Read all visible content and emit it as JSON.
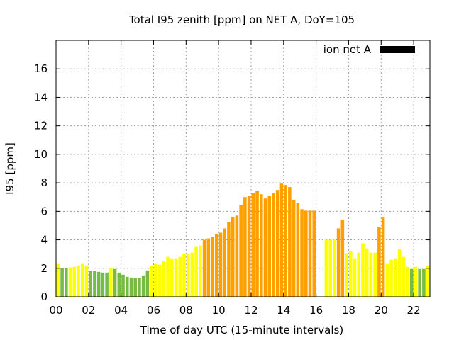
{
  "chart_data": {
    "type": "bar",
    "title": "Total I95 zenith [ppm] on NET A, DoY=105",
    "xlabel": "Time of day UTC (15-minute intervals)",
    "ylabel": "I95 [ppm]",
    "xlim": [
      0,
      23
    ],
    "ylim": [
      0,
      18
    ],
    "xticks": [
      "00",
      "02",
      "04",
      "06",
      "08",
      "10",
      "12",
      "14",
      "16",
      "18",
      "20",
      "22"
    ],
    "yticks": [
      "0",
      "2",
      "4",
      "6",
      "8",
      "10",
      "12",
      "14",
      "16"
    ],
    "grid": true,
    "legend": {
      "label": "ion net A",
      "position": "top-right"
    },
    "colors": {
      "green": "#77bb44",
      "yellow": "#ffff00",
      "orange": "#ffa000",
      "legend": "#000000"
    },
    "bar_width": 0.2,
    "bars": [
      {
        "t": 0.125,
        "v": 2.3,
        "c": "yellow"
      },
      {
        "t": 0.375,
        "v": 2.0,
        "c": "green"
      },
      {
        "t": 0.625,
        "v": 2.0,
        "c": "green"
      },
      {
        "t": 0.875,
        "v": 2.05,
        "c": "yellow"
      },
      {
        "t": 1.125,
        "v": 2.1,
        "c": "yellow"
      },
      {
        "t": 1.375,
        "v": 2.2,
        "c": "yellow"
      },
      {
        "t": 1.625,
        "v": 2.3,
        "c": "yellow"
      },
      {
        "t": 1.875,
        "v": 2.2,
        "c": "yellow"
      },
      {
        "t": 2.125,
        "v": 1.8,
        "c": "green"
      },
      {
        "t": 2.375,
        "v": 1.8,
        "c": "green"
      },
      {
        "t": 2.625,
        "v": 1.75,
        "c": "green"
      },
      {
        "t": 2.875,
        "v": 1.7,
        "c": "green"
      },
      {
        "t": 3.125,
        "v": 1.7,
        "c": "green"
      },
      {
        "t": 3.375,
        "v": 2.0,
        "c": "yellow"
      },
      {
        "t": 3.625,
        "v": 1.95,
        "c": "green"
      },
      {
        "t": 3.875,
        "v": 1.7,
        "c": "green"
      },
      {
        "t": 4.125,
        "v": 1.55,
        "c": "green"
      },
      {
        "t": 4.375,
        "v": 1.4,
        "c": "green"
      },
      {
        "t": 4.625,
        "v": 1.35,
        "c": "green"
      },
      {
        "t": 4.875,
        "v": 1.3,
        "c": "green"
      },
      {
        "t": 5.125,
        "v": 1.3,
        "c": "green"
      },
      {
        "t": 5.375,
        "v": 1.5,
        "c": "green"
      },
      {
        "t": 5.625,
        "v": 1.85,
        "c": "green"
      },
      {
        "t": 5.875,
        "v": 2.2,
        "c": "yellow"
      },
      {
        "t": 6.125,
        "v": 2.3,
        "c": "yellow"
      },
      {
        "t": 6.375,
        "v": 2.25,
        "c": "yellow"
      },
      {
        "t": 6.625,
        "v": 2.5,
        "c": "yellow"
      },
      {
        "t": 6.875,
        "v": 2.8,
        "c": "yellow"
      },
      {
        "t": 7.125,
        "v": 2.7,
        "c": "yellow"
      },
      {
        "t": 7.375,
        "v": 2.7,
        "c": "yellow"
      },
      {
        "t": 7.625,
        "v": 2.8,
        "c": "yellow"
      },
      {
        "t": 7.875,
        "v": 3.0,
        "c": "yellow"
      },
      {
        "t": 8.125,
        "v": 3.0,
        "c": "yellow"
      },
      {
        "t": 8.375,
        "v": 3.1,
        "c": "yellow"
      },
      {
        "t": 8.625,
        "v": 3.5,
        "c": "yellow"
      },
      {
        "t": 8.875,
        "v": 3.6,
        "c": "yellow"
      },
      {
        "t": 9.125,
        "v": 4.0,
        "c": "orange"
      },
      {
        "t": 9.375,
        "v": 4.1,
        "c": "orange"
      },
      {
        "t": 9.625,
        "v": 4.2,
        "c": "orange"
      },
      {
        "t": 9.875,
        "v": 4.4,
        "c": "orange"
      },
      {
        "t": 10.125,
        "v": 4.5,
        "c": "orange"
      },
      {
        "t": 10.375,
        "v": 4.8,
        "c": "orange"
      },
      {
        "t": 10.625,
        "v": 5.25,
        "c": "orange"
      },
      {
        "t": 10.875,
        "v": 5.6,
        "c": "orange"
      },
      {
        "t": 11.125,
        "v": 5.7,
        "c": "orange"
      },
      {
        "t": 11.375,
        "v": 6.45,
        "c": "orange"
      },
      {
        "t": 11.625,
        "v": 7.0,
        "c": "orange"
      },
      {
        "t": 11.875,
        "v": 7.1,
        "c": "orange"
      },
      {
        "t": 12.125,
        "v": 7.3,
        "c": "orange"
      },
      {
        "t": 12.375,
        "v": 7.45,
        "c": "orange"
      },
      {
        "t": 12.625,
        "v": 7.2,
        "c": "orange"
      },
      {
        "t": 12.875,
        "v": 6.9,
        "c": "orange"
      },
      {
        "t": 13.125,
        "v": 7.1,
        "c": "orange"
      },
      {
        "t": 13.375,
        "v": 7.3,
        "c": "orange"
      },
      {
        "t": 13.625,
        "v": 7.5,
        "c": "orange"
      },
      {
        "t": 13.875,
        "v": 7.95,
        "c": "orange"
      },
      {
        "t": 14.125,
        "v": 7.85,
        "c": "orange"
      },
      {
        "t": 14.375,
        "v": 7.7,
        "c": "orange"
      },
      {
        "t": 14.625,
        "v": 6.8,
        "c": "orange"
      },
      {
        "t": 14.875,
        "v": 6.6,
        "c": "orange"
      },
      {
        "t": 15.125,
        "v": 6.15,
        "c": "orange"
      },
      {
        "t": 15.375,
        "v": 6.05,
        "c": "orange"
      },
      {
        "t": 15.625,
        "v": 6.05,
        "c": "orange"
      },
      {
        "t": 15.875,
        "v": 6.05,
        "c": "orange"
      },
      {
        "t": 16.625,
        "v": 4.0,
        "c": "yellow"
      },
      {
        "t": 16.875,
        "v": 4.0,
        "c": "yellow"
      },
      {
        "t": 17.125,
        "v": 4.0,
        "c": "yellow"
      },
      {
        "t": 17.375,
        "v": 4.8,
        "c": "orange"
      },
      {
        "t": 17.625,
        "v": 5.4,
        "c": "orange"
      },
      {
        "t": 17.875,
        "v": 3.05,
        "c": "yellow"
      },
      {
        "t": 18.125,
        "v": 3.2,
        "c": "yellow"
      },
      {
        "t": 18.375,
        "v": 2.7,
        "c": "yellow"
      },
      {
        "t": 18.625,
        "v": 3.1,
        "c": "yellow"
      },
      {
        "t": 18.875,
        "v": 3.75,
        "c": "yellow"
      },
      {
        "t": 19.125,
        "v": 3.4,
        "c": "yellow"
      },
      {
        "t": 19.375,
        "v": 3.1,
        "c": "yellow"
      },
      {
        "t": 19.625,
        "v": 3.1,
        "c": "yellow"
      },
      {
        "t": 19.875,
        "v": 4.9,
        "c": "orange"
      },
      {
        "t": 20.125,
        "v": 5.6,
        "c": "orange"
      },
      {
        "t": 20.375,
        "v": 2.3,
        "c": "yellow"
      },
      {
        "t": 20.625,
        "v": 2.6,
        "c": "yellow"
      },
      {
        "t": 20.875,
        "v": 2.7,
        "c": "yellow"
      },
      {
        "t": 21.125,
        "v": 3.35,
        "c": "yellow"
      },
      {
        "t": 21.375,
        "v": 2.8,
        "c": "yellow"
      },
      {
        "t": 21.625,
        "v": 2.1,
        "c": "yellow"
      },
      {
        "t": 21.875,
        "v": 1.95,
        "c": "green"
      },
      {
        "t": 22.125,
        "v": 2.1,
        "c": "yellow"
      },
      {
        "t": 22.375,
        "v": 1.95,
        "c": "green"
      },
      {
        "t": 22.625,
        "v": 1.95,
        "c": "green"
      },
      {
        "t": 22.875,
        "v": 2.2,
        "c": "yellow"
      }
    ]
  }
}
